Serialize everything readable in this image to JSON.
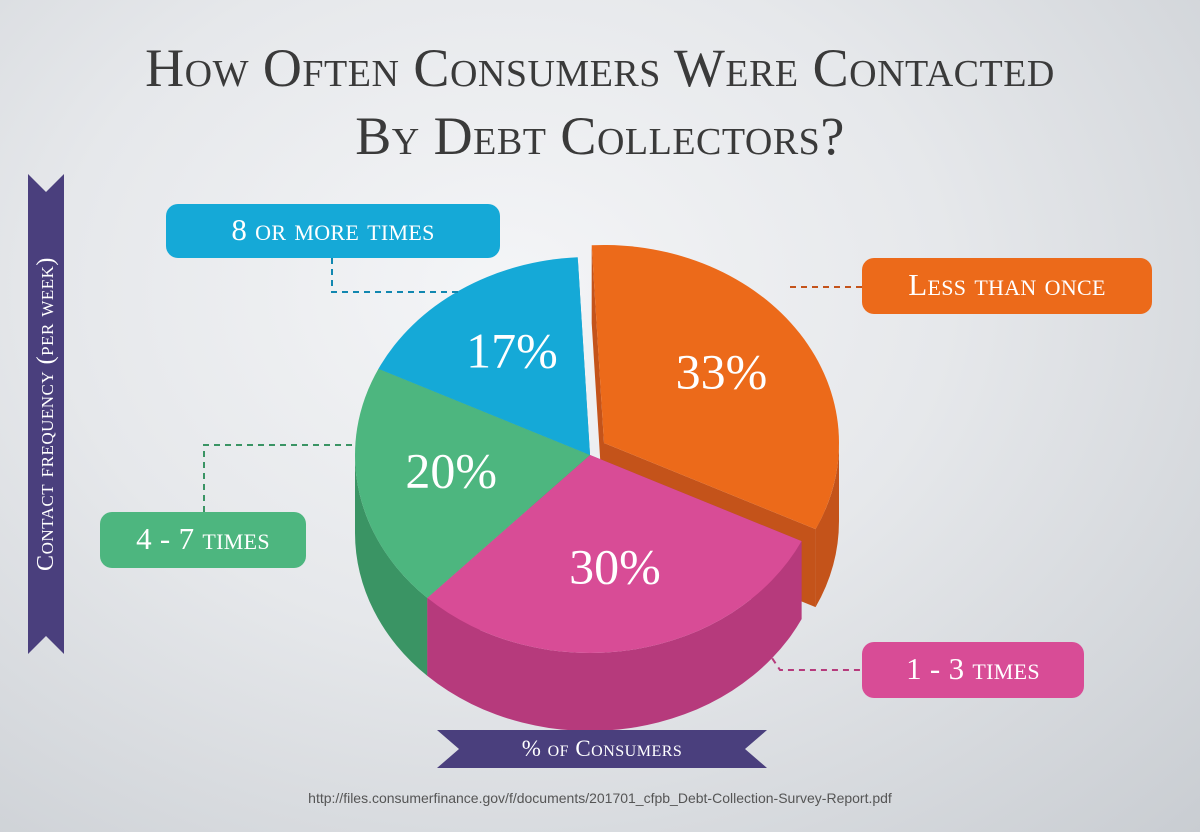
{
  "title_line1": "How Often Consumers Were Contacted",
  "title_line2": "By Debt Collectors?",
  "axis_label_vertical": "Contact frequency (per week)",
  "axis_label_horizontal": "% of Consumers",
  "source": "http://files.consumerfinance.gov/f/documents/201701_cfpb_Debt-Collection-Survey-Report.pdf",
  "chart_data": {
    "type": "pie",
    "title": "How Often Consumers Were Contacted By Debt Collectors?",
    "xlabel": "% of Consumers",
    "ylabel": "Contact frequency (per week)",
    "legend": "callouts",
    "slices": [
      {
        "label": "Less than once",
        "value": 33,
        "display": "33%",
        "color": "#ec6a1a",
        "side_color": "#c4531a"
      },
      {
        "label": "1 - 3 times",
        "value": 30,
        "display": "30%",
        "color": "#d84c96",
        "side_color": "#b63a7c"
      },
      {
        "label": "4 - 7 times",
        "value": 20,
        "display": "20%",
        "color": "#4db67f",
        "side_color": "#3a9464"
      },
      {
        "label": "8 or more times",
        "value": 17,
        "display": "17%",
        "color": "#15a9d7",
        "side_color": "#1187b0"
      }
    ]
  }
}
